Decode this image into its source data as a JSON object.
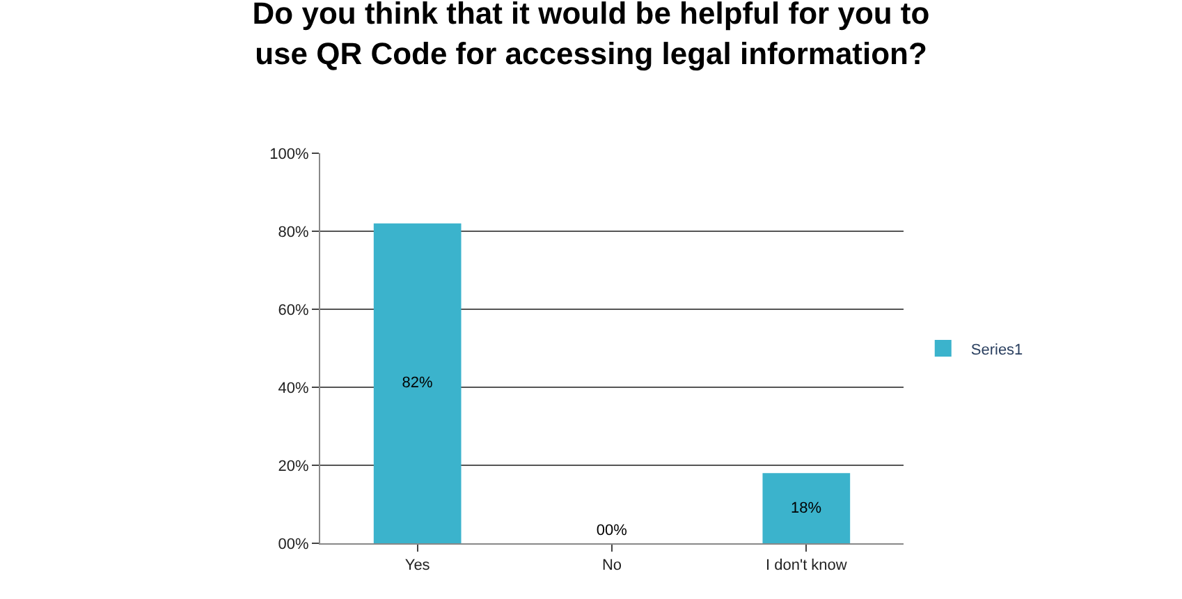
{
  "chart_data": {
    "type": "bar",
    "title": "Do you think that it would be helpful for you to\nuse QR Code for accessing legal information?",
    "categories": [
      "Yes",
      "No",
      "I don't know"
    ],
    "series": [
      {
        "name": "Series1",
        "color": "#3bb3cc",
        "values": [
          82,
          0,
          18
        ],
        "value_labels": [
          "82%",
          "00%",
          "18%"
        ]
      }
    ],
    "ylim": [
      0,
      100
    ],
    "yticks": [
      {
        "value": 0,
        "label": "00%"
      },
      {
        "value": 20,
        "label": "20%"
      },
      {
        "value": 40,
        "label": "40%"
      },
      {
        "value": 60,
        "label": "60%"
      },
      {
        "value": 80,
        "label": "80%"
      },
      {
        "value": 100,
        "label": "100%"
      }
    ],
    "grid": "y",
    "legend": "right"
  }
}
